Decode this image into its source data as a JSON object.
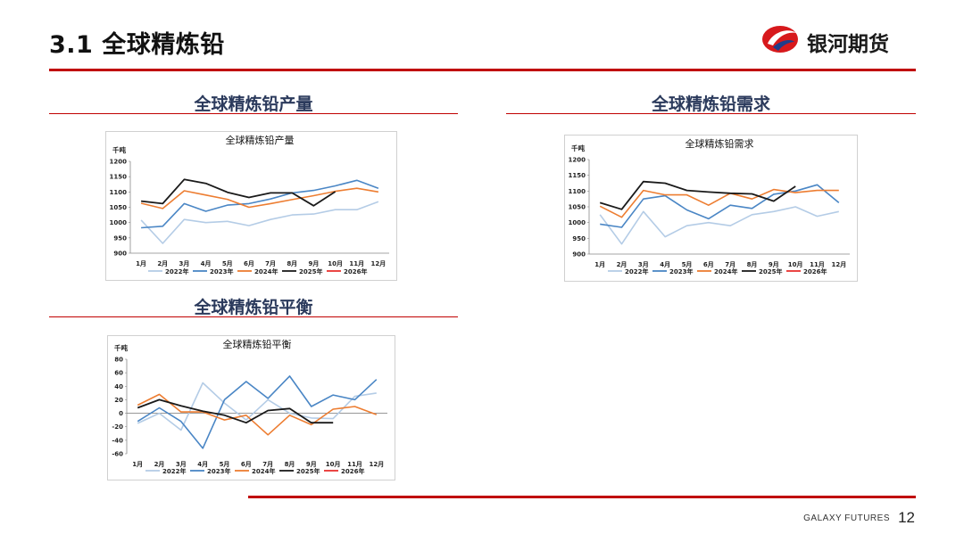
{
  "header": {
    "title": "3.1  全球精炼铅",
    "logo_text": "银河期货"
  },
  "footer": {
    "brand": "GALAXY FUTURES",
    "page_number": "12"
  },
  "colors": {
    "accent": "#c00000",
    "section_title": "#2b3a5c",
    "series": [
      "#b4cce6",
      "#4a86c5",
      "#ed7d31",
      "#1a1a1a",
      "#e8322f"
    ]
  },
  "sections": {
    "production": "全球精炼铅产量",
    "demand": "全球精炼铅需求",
    "balance": "全球精炼铅平衡"
  },
  "chart_data": [
    {
      "type": "line",
      "title": "全球精炼铅产量",
      "unit_label": "千吨",
      "categories": [
        "1月",
        "2月",
        "3月",
        "4月",
        "5月",
        "6月",
        "7月",
        "8月",
        "9月",
        "10月",
        "11月",
        "12月"
      ],
      "ylim": [
        900,
        1200
      ],
      "yticks": [
        900,
        950,
        1000,
        1050,
        1100,
        1150,
        1200
      ],
      "legend_position": "bottom",
      "series": [
        {
          "name": "2022年",
          "values": [
            1008,
            932,
            1010,
            1000,
            1004,
            990,
            1010,
            1025,
            1028,
            1042,
            1042,
            1068
          ]
        },
        {
          "name": "2023年",
          "values": [
            983,
            988,
            1062,
            1037,
            1057,
            1062,
            1077,
            1097,
            1105,
            1120,
            1138,
            1112
          ]
        },
        {
          "name": "2024年",
          "values": [
            1063,
            1046,
            1104,
            1090,
            1076,
            1050,
            1062,
            1075,
            1088,
            1102,
            1112,
            1100
          ]
        },
        {
          "name": "2025年",
          "values": [
            1070,
            1062,
            1141,
            1128,
            1099,
            1082,
            1097,
            1097,
            1055,
            1101,
            null,
            null
          ]
        },
        {
          "name": "2026年",
          "values": [
            null,
            null,
            null,
            null,
            null,
            null,
            null,
            null,
            null,
            null,
            null,
            null
          ]
        }
      ]
    },
    {
      "type": "line",
      "title": "全球精炼铅需求",
      "unit_label": "千吨",
      "categories": [
        "1月",
        "2月",
        "3月",
        "4月",
        "5月",
        "6月",
        "7月",
        "8月",
        "9月",
        "10月",
        "11月",
        "12月"
      ],
      "ylim": [
        900,
        1200
      ],
      "yticks": [
        900,
        950,
        1000,
        1050,
        1100,
        1150,
        1200
      ],
      "legend_position": "bottom",
      "series": [
        {
          "name": "2022年",
          "values": [
            1025,
            932,
            1035,
            955,
            990,
            1000,
            990,
            1025,
            1035,
            1050,
            1020,
            1035
          ]
        },
        {
          "name": "2023年",
          "values": [
            995,
            985,
            1075,
            1085,
            1040,
            1012,
            1055,
            1045,
            1090,
            1100,
            1120,
            1063
          ]
        },
        {
          "name": "2024年",
          "values": [
            1052,
            1017,
            1102,
            1088,
            1088,
            1055,
            1093,
            1075,
            1105,
            1095,
            1102,
            1102
          ]
        },
        {
          "name": "2025年",
          "values": [
            1063,
            1042,
            1130,
            1125,
            1102,
            1097,
            1093,
            1091,
            1068,
            1115,
            null,
            null
          ]
        },
        {
          "name": "2026年",
          "values": [
            null,
            null,
            null,
            null,
            null,
            null,
            null,
            null,
            null,
            null,
            null,
            null
          ]
        }
      ]
    },
    {
      "type": "line",
      "title": "全球精炼铅平衡",
      "unit_label": "千吨",
      "categories": [
        "1月",
        "2月",
        "3月",
        "4月",
        "5月",
        "6月",
        "7月",
        "8月",
        "9月",
        "10月",
        "11月",
        "12月"
      ],
      "ylim": [
        -60,
        80
      ],
      "yticks": [
        -60,
        -40,
        -20,
        0,
        20,
        40,
        60,
        80
      ],
      "legend_position": "bottom",
      "series": [
        {
          "name": "2022年",
          "values": [
            -15,
            0,
            -25,
            45,
            15,
            -10,
            20,
            0,
            -7,
            -8,
            25,
            30
          ]
        },
        {
          "name": "2023年",
          "values": [
            -12,
            8,
            -12,
            -52,
            20,
            47,
            22,
            55,
            10,
            27,
            20,
            50
          ]
        },
        {
          "name": "2024年",
          "values": [
            12,
            28,
            2,
            2,
            -10,
            -3,
            -32,
            -3,
            -17,
            6,
            10,
            -2
          ]
        },
        {
          "name": "2025年",
          "values": [
            8,
            20,
            11,
            3,
            -3,
            -14,
            4,
            7,
            -14,
            -14,
            null,
            null
          ]
        },
        {
          "name": "2026年",
          "values": [
            null,
            null,
            null,
            null,
            null,
            null,
            null,
            null,
            null,
            null,
            null,
            null
          ]
        }
      ]
    }
  ]
}
